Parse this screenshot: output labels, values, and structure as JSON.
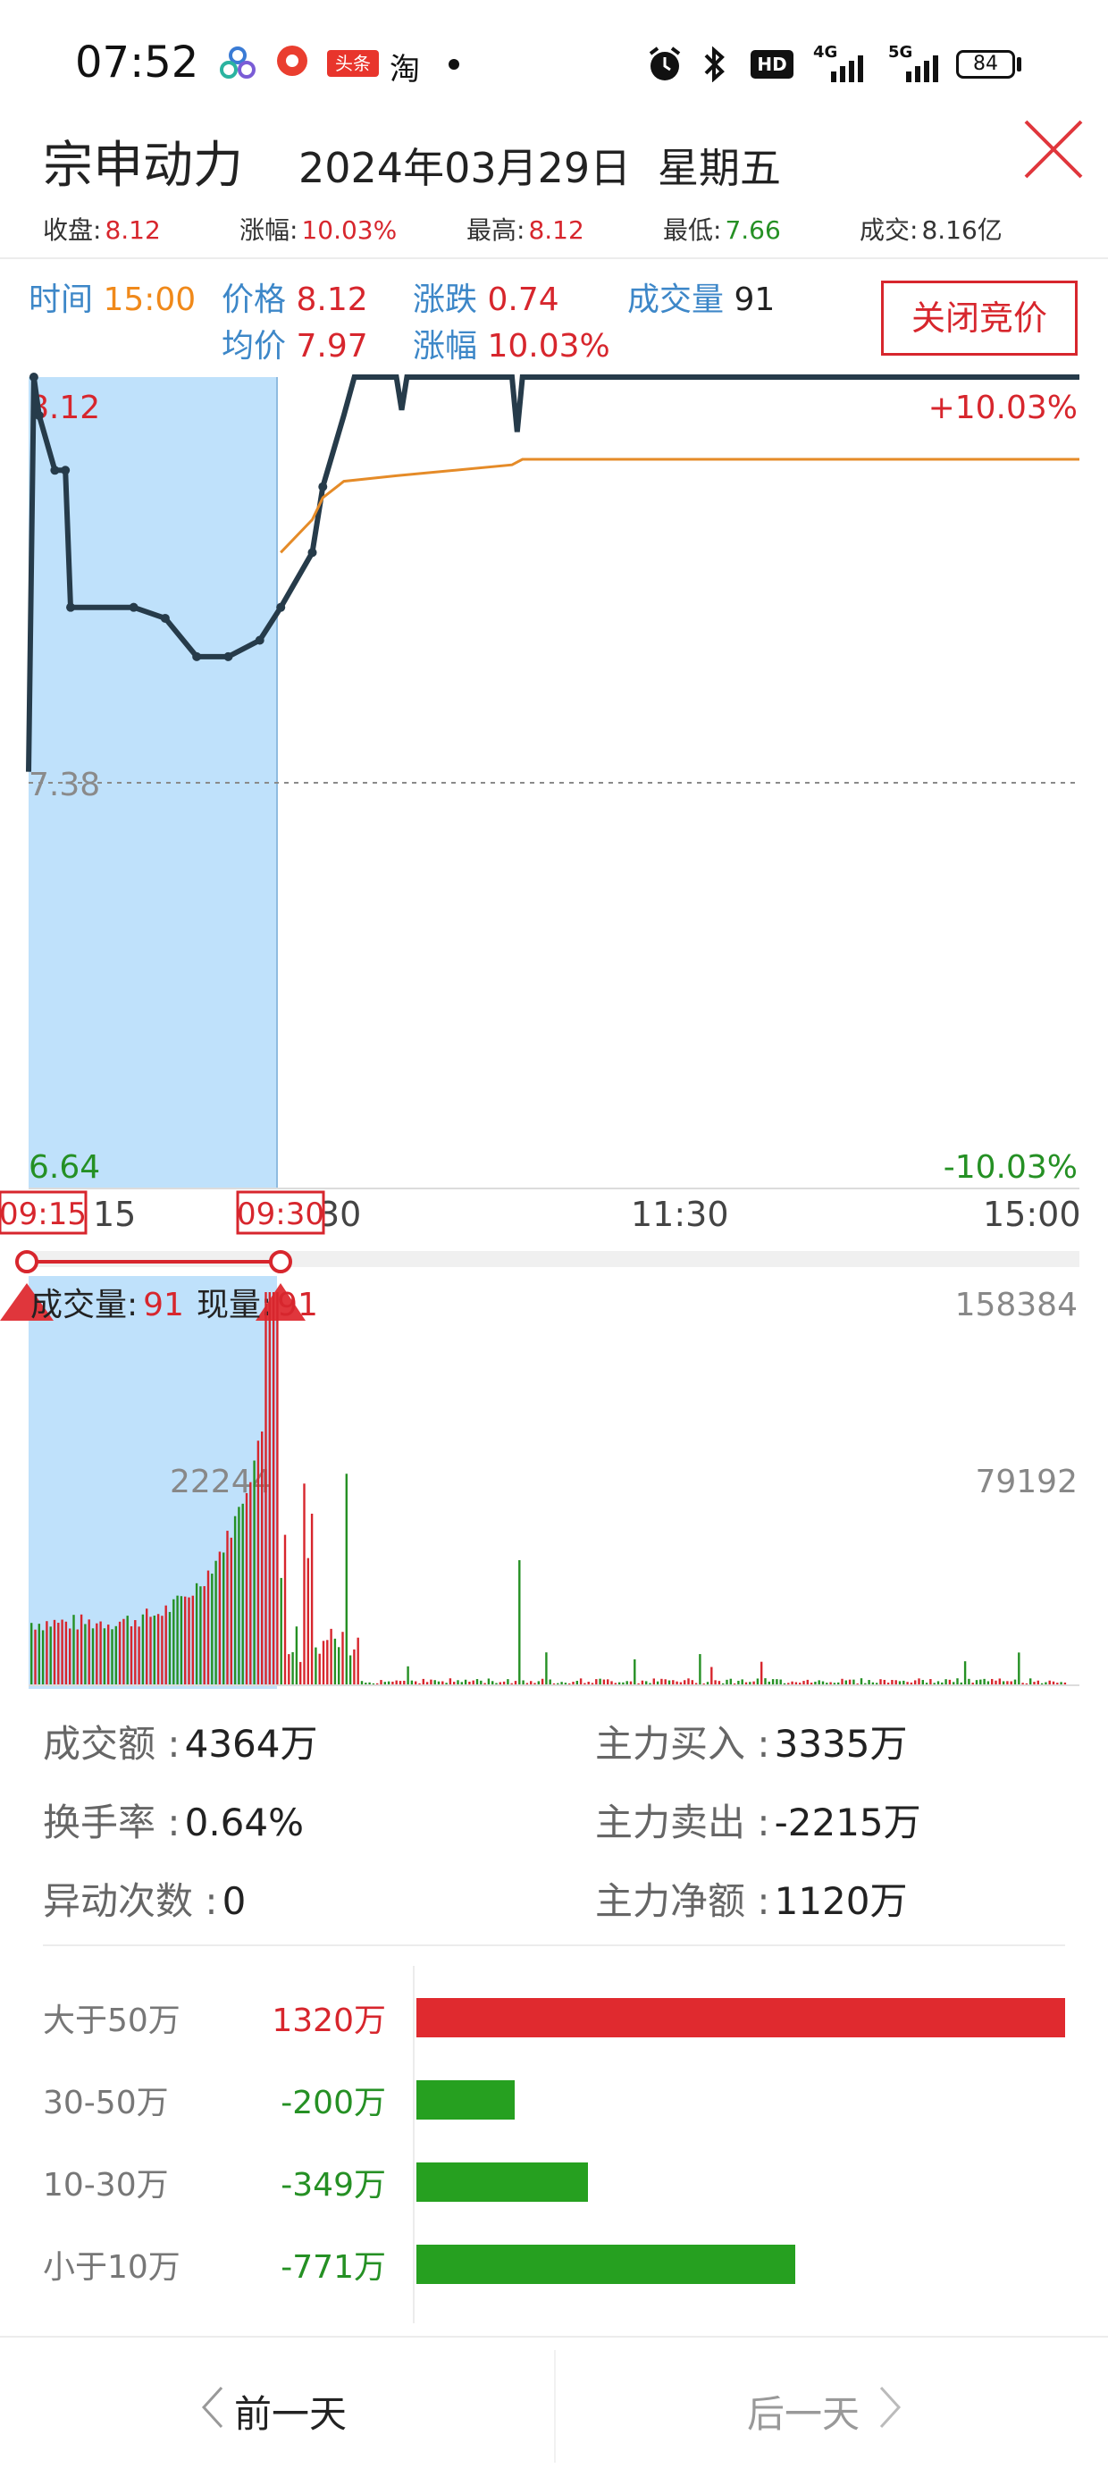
{
  "status_bar": {
    "time": "07:52",
    "icons": [
      "app-icon-cluster",
      "app-icon-red",
      "toutiao-icon",
      "taobao-icon",
      "dot-icon",
      "alarm-icon",
      "bluetooth-icon",
      "hd-icon",
      "signal-4g-icon",
      "signal-5g-icon",
      "battery-icon"
    ],
    "toutiao": "头条",
    "taobao": "淘",
    "hd": "HD",
    "net1": "4G",
    "net2": "5G",
    "battery": "84"
  },
  "header": {
    "stock_name": "宗申动力",
    "date": "2024年03月29日",
    "weekday": "星期五",
    "close_icon": "close-icon"
  },
  "summary": {
    "close_label": "收盘:",
    "close_value": "8.12",
    "change_pct_label": "涨幅:",
    "change_pct_value": "10.03%",
    "high_label": "最高:",
    "high_value": "8.12",
    "low_label": "最低:",
    "low_value": "7.66",
    "turnover_label": "成交:",
    "turnover_value": "8.16亿"
  },
  "info": {
    "time_label": "时间",
    "time_value": "15:00",
    "price_label": "价格",
    "price_value": "8.12",
    "change_label": "涨跌",
    "change_value": "0.74",
    "volume_label": "成交量",
    "volume_value": "91",
    "avg_label": "均价",
    "avg_value": "7.97",
    "pct_label": "涨幅",
    "pct_value": "10.03%",
    "close_auction_button": "关闭竞价"
  },
  "price_chart": {
    "top_price": "8.12",
    "top_pct": "+10.03%",
    "mid_price": "7.38",
    "bottom_price": "6.64",
    "bottom_pct": "-10.03%",
    "x_ticks": [
      "15",
      "30",
      "11:30",
      "15:00"
    ],
    "marker_start": "09:15",
    "marker_end": "09:30"
  },
  "volume_chart": {
    "volume_label": "成交量:",
    "volume_value": "91",
    "current_label": "现量:",
    "current_value": "91",
    "max_value": "158384",
    "mid_value": "79192",
    "auction_value": "22244"
  },
  "chart_data": [
    {
      "type": "line",
      "x_range": [
        "09:15",
        "15:00"
      ],
      "ylim": [
        6.64,
        8.12
      ],
      "reference_price": 7.38,
      "series": [
        {
          "values": [
            [
              0,
              7.4
            ],
            [
              0.005,
              8.12
            ],
            [
              0.01,
              8.05
            ],
            [
              0.025,
              7.95
            ],
            [
              0.035,
              7.95
            ],
            [
              0.04,
              7.7
            ],
            [
              0.1,
              7.7
            ],
            [
              0.13,
              7.68
            ],
            [
              0.16,
              7.61
            ],
            [
              0.19,
              7.61
            ],
            [
              0.22,
              7.64
            ],
            [
              0.24,
              7.7
            ],
            [
              0.27,
              7.8
            ],
            [
              0.28,
              7.92
            ],
            [
              0.3,
              8.05
            ],
            [
              0.31,
              8.12
            ],
            [
              0.35,
              8.12
            ],
            [
              0.355,
              8.06
            ],
            [
              0.36,
              8.12
            ],
            [
              0.46,
              8.12
            ],
            [
              0.465,
              8.02
            ],
            [
              0.47,
              8.12
            ],
            [
              1.0,
              8.12
            ]
          ]
        },
        {
          "values": [
            [
              0.24,
              7.8
            ],
            [
              0.27,
              7.86
            ],
            [
              0.28,
              7.9
            ],
            [
              0.3,
              7.93
            ],
            [
              0.35,
              7.94
            ],
            [
              0.46,
              7.96
            ],
            [
              0.47,
              7.97
            ],
            [
              1.0,
              7.97
            ]
          ]
        }
      ]
    },
    {
      "type": "bar",
      "ylim": [
        0,
        158384
      ],
      "values_note_max": 158384
    }
  ],
  "flow": {
    "turnover_amount_label": "成交额 :",
    "turnover_amount_value": "4364万",
    "turnover_rate_label": "换手率 :",
    "turnover_rate_value": "0.64%",
    "abnormal_label": "异动次数 :",
    "abnormal_value": "0",
    "main_buy_label": "主力买入 :",
    "main_buy_value": "3335万",
    "main_sell_label": "主力卖出 :",
    "main_sell_value": "-2215万",
    "main_net_label": "主力净额 :",
    "main_net_value": "1120万",
    "breakdown": [
      {
        "label": "大于50万",
        "value": "1320万",
        "amount": 1320,
        "color": "#e02a2f"
      },
      {
        "label": "30-50万",
        "value": "-200万",
        "amount": -200,
        "color": "#26a020"
      },
      {
        "label": "10-30万",
        "value": "-349万",
        "amount": -349,
        "color": "#26a020"
      },
      {
        "label": "小于10万",
        "value": "-771万",
        "amount": -771,
        "color": "#26a020"
      }
    ]
  },
  "footer": {
    "prev_day": "前一天",
    "next_day": "后一天"
  }
}
